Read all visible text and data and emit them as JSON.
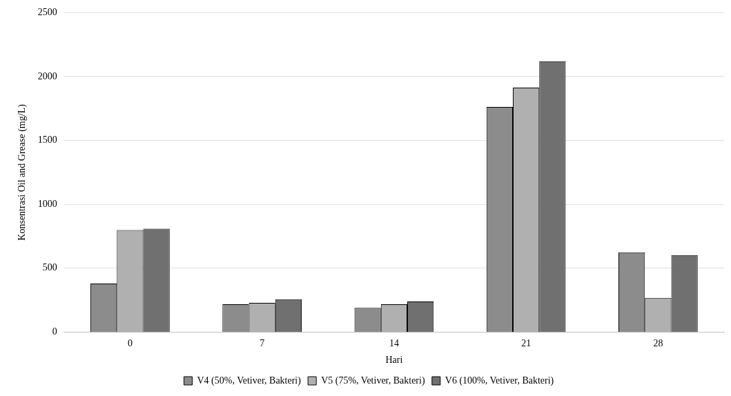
{
  "chart_data": {
    "type": "bar",
    "xlabel": "Hari",
    "ylabel": "Konsentrasi Oil and Grease (mg/L)",
    "categories": [
      "0",
      "7",
      "14",
      "21",
      "28"
    ],
    "series": [
      {
        "name": "V4 (50%, Vetiver, Bakteri)",
        "color": "#8c8c8c",
        "values": [
          380,
          218,
          190,
          1763,
          625
        ]
      },
      {
        "name": "V5 (75%, Vetiver, Bakteri)",
        "color": "#b0b0b0",
        "values": [
          798,
          229,
          218,
          1914,
          268
        ]
      },
      {
        "name": "V6 (100%, Vetiver, Bakteri)",
        "color": "#707070",
        "values": [
          809,
          257,
          240,
          2120,
          603
        ]
      }
    ],
    "ylim": [
      0,
      2500
    ],
    "yticks": [
      0,
      500,
      1000,
      1500,
      2000,
      2500
    ],
    "grid": "y",
    "legend": "bottom"
  }
}
